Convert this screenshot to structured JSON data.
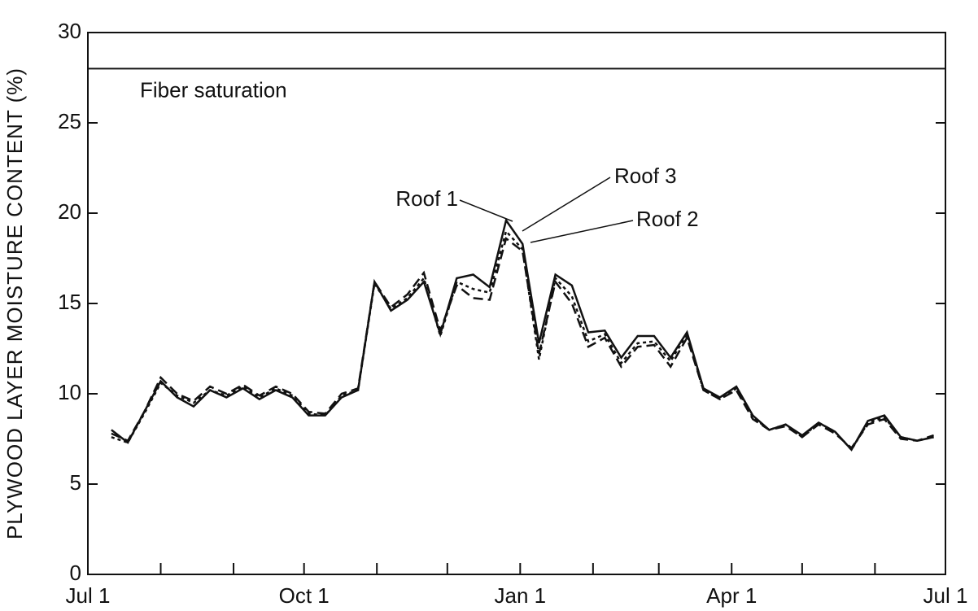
{
  "chart_data": {
    "type": "line",
    "y_label": "PLYWOOD LAYER MOISTURE CONTENT (%)",
    "xlim": [
      0,
      365
    ],
    "xticks": [
      {
        "value": 0,
        "label": "Jul 1"
      },
      {
        "value": 92,
        "label": "Oct 1"
      },
      {
        "value": 184,
        "label": "Jan 1"
      },
      {
        "value": 274,
        "label": "Apr 1"
      },
      {
        "value": 365,
        "label": "Jul 1"
      }
    ],
    "minor_xticks": [
      31,
      62,
      123,
      153,
      215,
      243,
      304,
      335
    ],
    "ylim": [
      0,
      30
    ],
    "yticks": [
      0,
      5,
      10,
      15,
      20,
      25,
      30
    ],
    "reference_lines": [
      {
        "value": 28,
        "label": "Fiber saturation"
      }
    ],
    "x": [
      10,
      17,
      24,
      31,
      38,
      45,
      52,
      59,
      66,
      73,
      80,
      87,
      94,
      101,
      108,
      115,
      122,
      129,
      136,
      143,
      150,
      157,
      164,
      171,
      178,
      185,
      192,
      199,
      206,
      213,
      220,
      227,
      234,
      241,
      248,
      255,
      262,
      269,
      276,
      283,
      290,
      297,
      304,
      311,
      318,
      325,
      332,
      339,
      346,
      353,
      360
    ],
    "series": [
      {
        "name": "Roof 1",
        "color": "#111111",
        "style": "solid",
        "values": [
          8.0,
          7.3,
          9.0,
          10.7,
          9.8,
          9.3,
          10.2,
          9.8,
          10.3,
          9.7,
          10.2,
          9.8,
          8.8,
          8.8,
          9.8,
          10.2,
          16.2,
          14.6,
          15.2,
          16.2,
          13.3,
          16.4,
          16.6,
          15.9,
          19.6,
          18.3,
          12.8,
          16.6,
          16.0,
          13.4,
          13.5,
          12.0,
          13.2,
          13.2,
          12.0,
          13.4,
          10.3,
          9.8,
          10.4,
          8.8,
          8.0,
          8.3,
          7.7,
          8.4,
          7.9,
          6.9,
          8.5,
          8.8,
          7.6,
          7.4,
          7.6
        ]
      },
      {
        "name": "Roof 2",
        "color": "#111111",
        "style": "dashed",
        "values": [
          7.8,
          7.4,
          9.0,
          10.9,
          10.0,
          9.6,
          10.4,
          10.0,
          10.5,
          9.9,
          10.4,
          10.0,
          9.0,
          8.9,
          10.0,
          10.3,
          16.2,
          14.8,
          15.5,
          16.7,
          13.5,
          16.0,
          15.3,
          15.2,
          18.6,
          17.9,
          12.2,
          16.2,
          15.0,
          12.6,
          13.1,
          11.5,
          12.6,
          12.7,
          11.5,
          13.1,
          10.2,
          9.7,
          10.2,
          8.6,
          8.0,
          8.2,
          7.6,
          8.3,
          7.8,
          7.0,
          8.3,
          8.6,
          7.5,
          7.4,
          7.7
        ]
      },
      {
        "name": "Roof 3",
        "color": "#111111",
        "style": "dotted",
        "values": [
          7.6,
          7.3,
          8.9,
          10.6,
          9.9,
          9.5,
          10.2,
          9.9,
          10.4,
          9.8,
          10.3,
          9.9,
          8.9,
          8.8,
          9.9,
          10.2,
          16.1,
          14.7,
          15.3,
          16.4,
          13.2,
          16.2,
          15.8,
          15.6,
          19.0,
          18.0,
          11.9,
          16.4,
          15.4,
          12.9,
          13.3,
          11.7,
          12.8,
          12.9,
          11.8,
          13.3,
          10.2,
          9.7,
          10.3,
          8.7,
          8.0,
          8.3,
          7.6,
          8.4,
          7.9,
          6.9,
          8.4,
          8.7,
          7.6,
          7.4,
          7.6
        ]
      }
    ]
  }
}
